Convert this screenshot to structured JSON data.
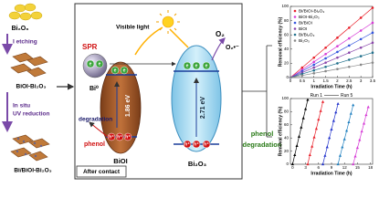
{
  "left_panel": {
    "start": "Bi₂O₃",
    "step1": "I etching",
    "middle": "BiOI-Bi₂O₃",
    "step2a": "In situ",
    "step2b": "UV reduction",
    "end": "Bi/BiOI-Bi₂O₃"
  },
  "center": {
    "spr": "SPR",
    "bi0": "Bi⁰",
    "visible_light": "Visible light",
    "o2": "O₂",
    "o2_radical": "O₂•⁻",
    "gap_bioi": "1.86 eV",
    "gap_bi2o3": "2.71 eV",
    "degradation": "degradation",
    "phenol": "phenol",
    "bioi": "BiOI",
    "bi2o3": "Bi₂O₃",
    "electron": "e",
    "hole": "h⁺",
    "after_contact": "After contact"
  },
  "side_label": {
    "line1": "phenol",
    "line2": "degradation"
  },
  "chart_data": [
    {
      "type": "line",
      "marker": "circle",
      "xlabel": "Irradiation Time (h)",
      "ylabel": "Removal efficiency (%)",
      "x": [
        0,
        0.5,
        1,
        1.5,
        2,
        2.5,
        3,
        3.5
      ],
      "series": [
        {
          "name": "Bi/BiOI-Bi₂O₃",
          "color": "#e8202a",
          "values": [
            0,
            14,
            28,
            42,
            56,
            70,
            84,
            98
          ]
        },
        {
          "name": "BiOI-Bi₂O₃",
          "color": "#d63bd6",
          "values": [
            0,
            11,
            22,
            33,
            44,
            55,
            66,
            77
          ]
        },
        {
          "name": "Bi/BiOI",
          "color": "#3355dd",
          "values": [
            0,
            9,
            18,
            27,
            36,
            45,
            54,
            63
          ]
        },
        {
          "name": "BiOI",
          "color": "#8844aa",
          "values": [
            0,
            7,
            14,
            21,
            28,
            35,
            42,
            49
          ]
        },
        {
          "name": "Bi/Bi₂O₃",
          "color": "#1f6f8b",
          "values": [
            0,
            5,
            10,
            15,
            20,
            25,
            30,
            35
          ]
        },
        {
          "name": "Bi₂O₃",
          "color": "#888888",
          "values": [
            0,
            3,
            6,
            9,
            12,
            15,
            18,
            21
          ]
        }
      ],
      "xlim": [
        0,
        3.5
      ],
      "xticks": [
        0,
        0.5,
        1,
        1.5,
        2,
        2.5,
        3,
        3.5
      ],
      "ylim": [
        0,
        100
      ],
      "yticks": [
        0,
        20,
        40,
        60,
        80,
        100
      ]
    },
    {
      "type": "line",
      "marker": "triangle",
      "xlabel": "Irradiation Time (h)",
      "ylabel": "Removal efficiency (%)",
      "legend_labels": [
        "Run 1",
        "Run 5"
      ],
      "series": [
        {
          "color": "#000000",
          "x": [
            0,
            0.5,
            1,
            1.5,
            2,
            2.5,
            3,
            3.5
          ],
          "values": [
            0,
            14,
            28,
            42,
            56,
            70,
            84,
            98
          ]
        },
        {
          "color": "#e8202a",
          "x": [
            3.5,
            4,
            4.5,
            5,
            5.5,
            6,
            6.5,
            7
          ],
          "values": [
            0,
            14,
            27,
            41,
            54,
            68,
            81,
            95
          ]
        },
        {
          "color": "#2233cc",
          "x": [
            7,
            7.5,
            8,
            8.5,
            9,
            9.5,
            10,
            10.5
          ],
          "values": [
            0,
            13,
            26,
            40,
            53,
            66,
            79,
            92
          ]
        },
        {
          "color": "#1f7fbf",
          "x": [
            10.5,
            11,
            11.5,
            12,
            12.5,
            13,
            13.5,
            14
          ],
          "values": [
            0,
            13,
            26,
            38,
            51,
            64,
            77,
            90
          ]
        },
        {
          "color": "#d63bd6",
          "x": [
            14,
            14.5,
            15,
            15.5,
            16,
            16.5,
            17,
            17.5
          ],
          "values": [
            0,
            12,
            25,
            37,
            50,
            62,
            75,
            87
          ]
        }
      ],
      "xlim": [
        -0.5,
        18.5
      ],
      "xticks": [
        0,
        3,
        6,
        9,
        12,
        15,
        18
      ],
      "ylim": [
        0,
        100
      ],
      "yticks": [
        0,
        20,
        40,
        60,
        80,
        100
      ]
    }
  ]
}
